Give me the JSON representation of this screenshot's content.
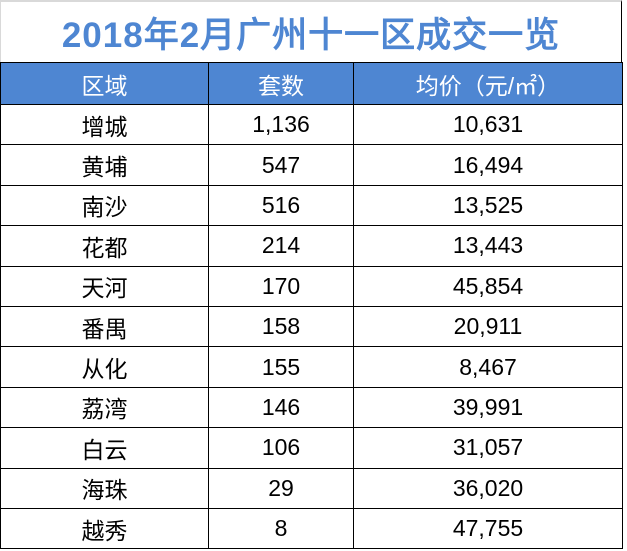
{
  "title": "2018年2月广州十一区成交一览",
  "table": {
    "headers": [
      "区域",
      "套数",
      "均价（元/㎡）"
    ],
    "rows": [
      [
        "增城",
        "1,136",
        "10,631"
      ],
      [
        "黄埔",
        "547",
        "16,494"
      ],
      [
        "南沙",
        "516",
        "13,525"
      ],
      [
        "花都",
        "214",
        "13,443"
      ],
      [
        "天河",
        "170",
        "45,854"
      ],
      [
        "番禺",
        "158",
        "20,911"
      ],
      [
        "从化",
        "155",
        "8,467"
      ],
      [
        "荔湾",
        "146",
        "39,991"
      ],
      [
        "白云",
        "106",
        "31,057"
      ],
      [
        "海珠",
        "29",
        "36,020"
      ],
      [
        "越秀",
        "8",
        "47,755"
      ]
    ]
  },
  "colors": {
    "accent_blue": "#4e86d2",
    "header_text": "#ffffff",
    "body_text": "#000000",
    "grid_border": "#000000",
    "outer_gridline": "#d9d9d9"
  },
  "chart_data": {
    "type": "table",
    "title": "2018年2月广州十一区成交一览",
    "columns": [
      "区域",
      "套数",
      "均价（元/㎡）"
    ],
    "rows": [
      [
        "增城",
        1136,
        10631
      ],
      [
        "黄埔",
        547,
        16494
      ],
      [
        "南沙",
        516,
        13525
      ],
      [
        "花都",
        214,
        13443
      ],
      [
        "天河",
        170,
        45854
      ],
      [
        "番禺",
        158,
        20911
      ],
      [
        "从化",
        155,
        8467
      ],
      [
        "荔湾",
        146,
        39991
      ],
      [
        "白云",
        106,
        31057
      ],
      [
        "海珠",
        29,
        36020
      ],
      [
        "越秀",
        8,
        47755
      ]
    ]
  }
}
